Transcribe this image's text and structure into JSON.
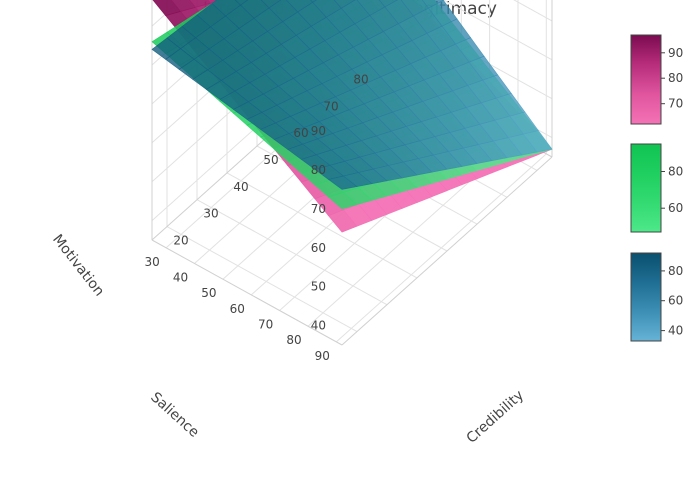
{
  "chart_data": {
    "type": "surface3d",
    "title": "Interactions at levels of legitimacy",
    "axes": {
      "x": {
        "title": "Credibility",
        "ticks": [
          20,
          30,
          40,
          50,
          60,
          70,
          80
        ],
        "range": [
          15,
          85
        ]
      },
      "y": {
        "title": "Salience",
        "ticks": [
          30,
          40,
          50,
          60,
          70,
          80,
          90
        ],
        "range": [
          25,
          92
        ]
      },
      "z": {
        "title": "Motivation",
        "ticks": [
          40,
          50,
          60,
          70,
          80,
          90
        ],
        "range": [
          35,
          98
        ]
      }
    },
    "series": [
      {
        "colorscale": [
          "#f472b6",
          "#e0559e",
          "#b82d7c",
          "#7a0b50"
        ],
        "colorbar_ticks": [
          70,
          80,
          90
        ],
        "colorbar_range": [
          62,
          97
        ],
        "corners": {
          "x_min_y_min": 97,
          "x_max_y_min": 63,
          "x_min_y_max": 64,
          "x_max_y_max": 37
        }
      },
      {
        "colorscale": [
          "#4ee88a",
          "#33da72",
          "#1fcf5f",
          "#10c452"
        ],
        "colorbar_ticks": [
          60,
          80
        ],
        "colorbar_range": [
          47,
          95
        ],
        "corners": {
          "x_min_y_min": 86,
          "x_max_y_min": 72,
          "x_min_y_max": 70,
          "x_max_y_max": 37
        }
      },
      {
        "colorscale": [
          "#66b3d6",
          "#3d8fb5",
          "#1f6e93",
          "#0a4f6e"
        ],
        "colorbar_ticks": [
          40,
          60,
          80
        ],
        "colorbar_range": [
          33,
          92
        ],
        "corners": {
          "x_min_y_min": 84,
          "x_max_y_min": 77,
          "x_min_y_max": 75,
          "x_max_y_max": 37
        }
      }
    ]
  }
}
